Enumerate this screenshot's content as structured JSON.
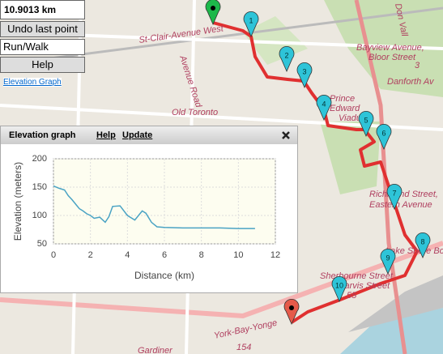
{
  "controls": {
    "distance": "10.9013 km",
    "undo": "Undo last point",
    "mode": "Run/Walk",
    "help": "Help",
    "elevation_link": "Elevation Graph"
  },
  "map": {
    "labels": [
      "St-Clair-Avenue West",
      "Avenue Road",
      "Old Toronto",
      "Bayview Avenue,",
      "Bloor Street",
      "Prince",
      "Edward",
      "Viadu",
      "Danforth Av",
      "Don Vall",
      "Richmond Street,",
      "Eastern Avenue",
      "Lake Shore Boul",
      "Sherbourne Street",
      "Jarvis Street",
      "York-Bay-Yonge",
      "Gardiner",
      "55",
      "154",
      "3"
    ],
    "markers": [
      "1",
      "2",
      "3",
      "4",
      "5",
      "6",
      "7",
      "8",
      "9",
      "10"
    ]
  },
  "elevation_graph": {
    "title": "Elevation graph",
    "links": [
      "Help",
      "Update"
    ],
    "chart": {
      "type": "line",
      "xlabel": "Distance (km)",
      "ylabel": "Elevation (meters)",
      "x": [
        0,
        0.3,
        0.6,
        0.8,
        1.0,
        1.2,
        1.4,
        1.6,
        1.8,
        2.0,
        2.2,
        2.5,
        2.8,
        3.0,
        3.2,
        3.6,
        4.0,
        4.4,
        4.8,
        5.0,
        5.3,
        5.6,
        6,
        7,
        8,
        9,
        10,
        10.9
      ],
      "values": [
        152,
        148,
        145,
        135,
        128,
        120,
        112,
        108,
        103,
        100,
        95,
        97,
        88,
        98,
        116,
        117,
        100,
        92,
        108,
        104,
        88,
        80,
        79,
        78,
        78,
        78,
        77,
        77
      ],
      "color": "#4aa3c4",
      "xlim": [
        0,
        12
      ],
      "ylim": [
        50,
        200
      ],
      "xticks": [
        0,
        2,
        4,
        6,
        8,
        10,
        12
      ],
      "yticks": [
        50,
        100,
        150,
        200
      ],
      "grid": true
    }
  }
}
